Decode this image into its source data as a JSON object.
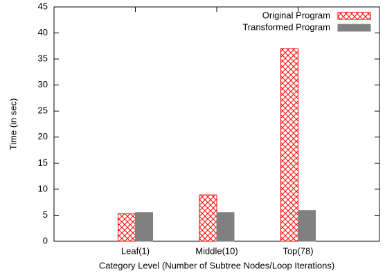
{
  "chart_data": {
    "type": "bar",
    "categories": [
      "Leaf(1)",
      "Middle(10)",
      "Top(78)"
    ],
    "series": [
      {
        "name": "Original Program",
        "color": "#ff0000",
        "pattern": "crosshatch",
        "values": [
          5.3,
          8.9,
          37
        ]
      },
      {
        "name": "Transformed Program",
        "color": "#808080",
        "pattern": "solid",
        "values": [
          5.5,
          5.5,
          5.9
        ]
      }
    ],
    "ylim": [
      0,
      45
    ],
    "yticks": [
      0,
      5,
      10,
      15,
      20,
      25,
      30,
      35,
      40,
      45
    ],
    "ylabel": "Time (in sec)",
    "xlabel": "Category Level (Number of Subtree Nodes/Loop Iterations)",
    "legend": "top right",
    "grid": false
  }
}
